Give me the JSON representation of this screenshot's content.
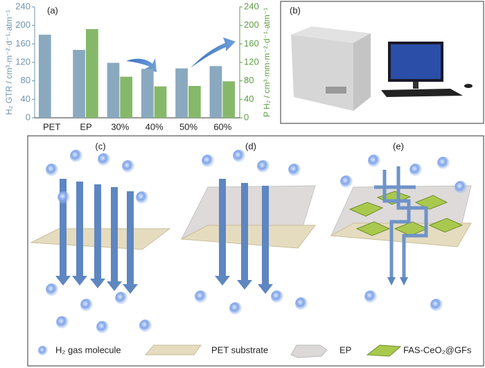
{
  "chart_data": {
    "type": "bar",
    "title": "(a)",
    "categories": [
      "PET",
      "EP",
      "30%",
      "40%",
      "50%",
      "60%"
    ],
    "series": [
      {
        "color": "#8aa9bf",
        "values": [
          180,
          147,
          119,
          106,
          107,
          112
        ]
      },
      {
        "color": "#86b86a",
        "axis": "y2",
        "values": [
          null,
          192,
          89,
          68,
          69,
          79
        ]
      }
    ],
    "ylabel": "H₂ GTR / cm³·m⁻²·d⁻¹·atm⁻¹",
    "y2label": "P H₂ / cm³·mm·m⁻²·d⁻¹·atm⁻¹",
    "ylim": [
      0,
      240
    ],
    "yticks": [
      0,
      40,
      80,
      120,
      160,
      200,
      240
    ],
    "y2lim": [
      0,
      240
    ],
    "y2ticks": [
      0,
      40,
      80,
      120,
      160,
      200,
      240
    ]
  },
  "panels": {
    "b": "(b)",
    "c": "(c)",
    "d": "(d)",
    "e": "(e)"
  },
  "legend": [
    "H₂ gas molecule",
    "PET substrate",
    "EP",
    "FAS-CeO₂@GFs"
  ]
}
